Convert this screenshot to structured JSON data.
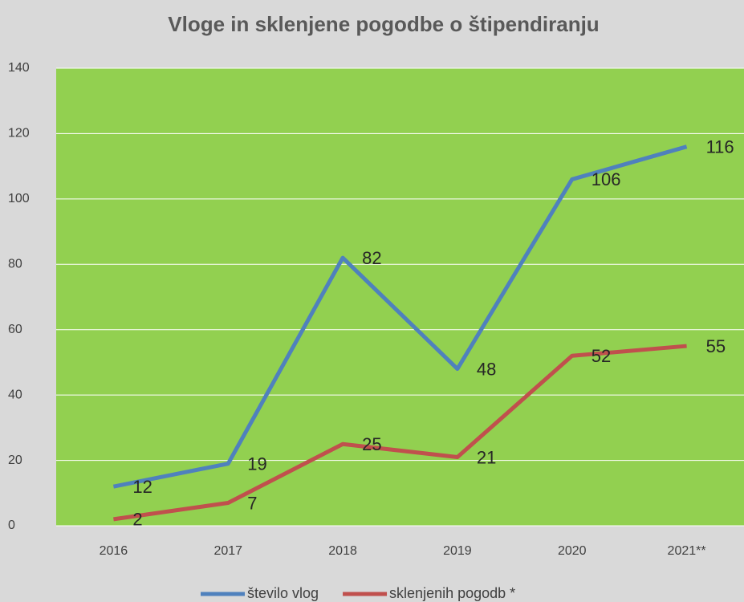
{
  "chart_data": {
    "type": "line",
    "title": "Vloge in sklenjene pogodbe o štipendiranju",
    "categories": [
      "2016",
      "2017",
      "2018",
      "2019",
      "2020",
      "2021**"
    ],
    "series": [
      {
        "name": "število vlog",
        "color": "#4f81bd",
        "values": [
          12,
          19,
          82,
          48,
          106,
          116
        ]
      },
      {
        "name": "sklenjenih pogodb *",
        "color": "#c0504d",
        "values": [
          2,
          7,
          25,
          21,
          52,
          55
        ]
      }
    ],
    "ylim": [
      0,
      140
    ],
    "yticks": [
      0,
      20,
      40,
      60,
      80,
      100,
      120,
      140
    ],
    "grid": true,
    "legend": "bottom"
  }
}
